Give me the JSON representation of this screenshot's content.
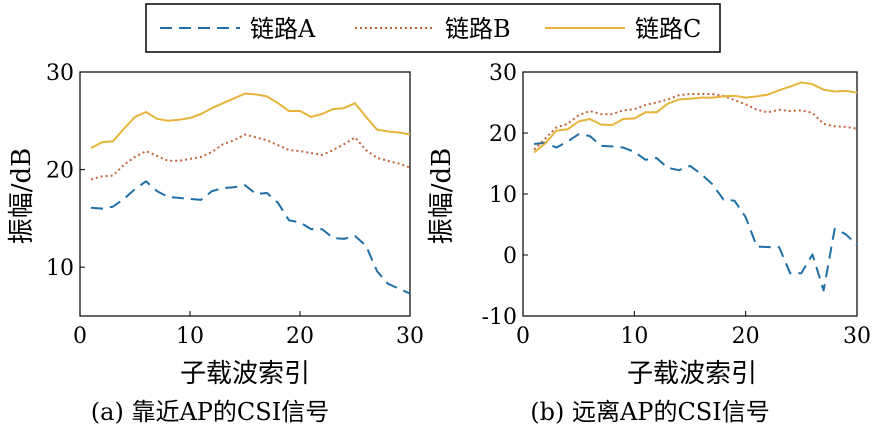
{
  "legend": {
    "entries": [
      {
        "name": "链路A",
        "color": "#1f6fa8",
        "dash": "dashed"
      },
      {
        "name": "链路B",
        "color": "#c0653a",
        "dash": "dotted"
      },
      {
        "name": "链路C",
        "color": "#e7b43a",
        "dash": "solid"
      }
    ]
  },
  "chart_data": [
    {
      "type": "line",
      "caption": "(a) 靠近AP的CSI信号",
      "xlabel": "子载波索引",
      "ylabel": "振幅/dB",
      "xlim": [
        0,
        30
      ],
      "ylim": [
        5,
        30
      ],
      "xticks": [
        0,
        10,
        20,
        30
      ],
      "yticks": [
        10,
        20,
        30
      ],
      "grid": false,
      "x": [
        1,
        2,
        3,
        4,
        5,
        6,
        7,
        8,
        9,
        10,
        11,
        12,
        13,
        14,
        15,
        16,
        17,
        18,
        19,
        20,
        21,
        22,
        23,
        24,
        25,
        26,
        27,
        28,
        29,
        30
      ],
      "series": [
        {
          "name": "链路A",
          "values": [
            16.1,
            16.0,
            16.2,
            17.0,
            18.0,
            18.8,
            17.8,
            17.2,
            17.1,
            17.0,
            16.9,
            17.8,
            18.1,
            18.2,
            18.4,
            17.5,
            17.6,
            16.6,
            14.8,
            14.6,
            13.9,
            13.9,
            13.0,
            12.9,
            13.2,
            12.2,
            9.6,
            8.3,
            7.8,
            7.3
          ]
        },
        {
          "name": "链路B",
          "values": [
            19.0,
            19.3,
            19.4,
            20.5,
            21.3,
            21.9,
            21.4,
            20.9,
            20.9,
            21.1,
            21.3,
            21.8,
            22.6,
            23.0,
            23.6,
            23.3,
            23.0,
            22.5,
            22.0,
            21.9,
            21.7,
            21.5,
            22.0,
            22.6,
            23.3,
            22.0,
            21.2,
            20.9,
            20.6,
            20.2
          ]
        },
        {
          "name": "链路C",
          "values": [
            22.2,
            22.8,
            22.9,
            24.2,
            25.4,
            25.9,
            25.2,
            25.0,
            25.1,
            25.3,
            25.7,
            26.3,
            26.8,
            27.3,
            27.8,
            27.7,
            27.5,
            26.8,
            26.0,
            26.0,
            25.4,
            25.7,
            26.2,
            26.3,
            26.8,
            25.4,
            24.1,
            23.9,
            23.8,
            23.6
          ]
        }
      ]
    },
    {
      "type": "line",
      "caption": "(b) 远离AP的CSI信号",
      "xlabel": "子载波索引",
      "ylabel": "振幅/dB",
      "xlim": [
        0,
        30
      ],
      "ylim": [
        -10,
        30
      ],
      "xticks": [
        0,
        10,
        20,
        30
      ],
      "yticks": [
        -10,
        0,
        10,
        20,
        30
      ],
      "grid": false,
      "x": [
        1,
        2,
        3,
        4,
        5,
        6,
        7,
        8,
        9,
        10,
        11,
        12,
        13,
        14,
        15,
        16,
        17,
        18,
        19,
        20,
        21,
        22,
        23,
        24,
        25,
        26,
        27,
        28,
        29,
        30
      ],
      "series": [
        {
          "name": "链路A",
          "values": [
            18.2,
            18.4,
            17.6,
            18.6,
            19.8,
            19.5,
            17.9,
            17.8,
            17.6,
            16.9,
            15.6,
            15.9,
            14.3,
            13.9,
            14.6,
            13.3,
            11.6,
            9.1,
            8.9,
            6.2,
            1.4,
            1.3,
            1.3,
            -3.0,
            -3.0,
            0.1,
            -5.8,
            4.3,
            3.4,
            1.6
          ]
        },
        {
          "name": "链路B",
          "values": [
            17.3,
            19.1,
            20.9,
            21.5,
            22.9,
            23.6,
            23.1,
            23.1,
            23.7,
            23.9,
            24.6,
            25.0,
            25.5,
            26.2,
            26.4,
            26.4,
            26.4,
            26.1,
            25.4,
            24.7,
            23.8,
            23.4,
            23.8,
            23.6,
            23.7,
            23.3,
            21.5,
            21.1,
            21.0,
            20.7
          ]
        },
        {
          "name": "链路C",
          "values": [
            16.8,
            18.3,
            20.4,
            20.6,
            21.9,
            22.3,
            21.4,
            21.3,
            22.3,
            22.4,
            23.4,
            23.4,
            24.8,
            25.5,
            25.6,
            25.8,
            25.8,
            26.0,
            26.1,
            25.8,
            26.0,
            26.3,
            27.0,
            27.6,
            28.3,
            28.0,
            27.1,
            26.8,
            26.9,
            26.6
          ]
        }
      ]
    }
  ]
}
